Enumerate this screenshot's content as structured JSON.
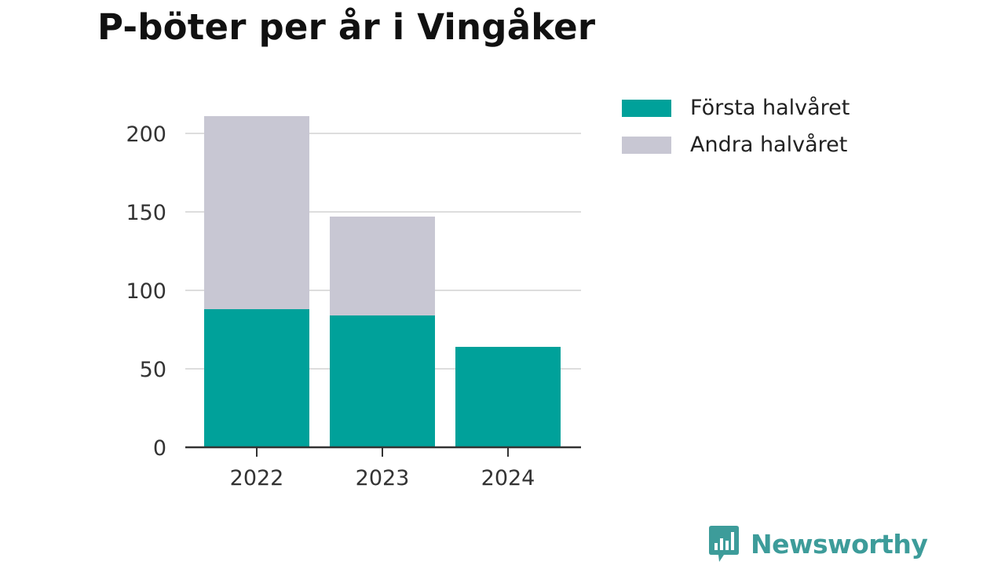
{
  "chart_data": {
    "type": "bar",
    "stacked": true,
    "title": "P-böter per år i Vingåker",
    "categories": [
      "2022",
      "2023",
      "2024"
    ],
    "series": [
      {
        "name": "Första halvåret",
        "values": [
          88,
          84,
          64
        ],
        "color": "#00a19a"
      },
      {
        "name": "Andra halvåret",
        "values": [
          123,
          63,
          0
        ],
        "color": "#c8c7d3"
      }
    ],
    "yticks": [
      0,
      50,
      100,
      150,
      200
    ],
    "ylim": [
      0,
      211
    ],
    "grid": true,
    "legend_position": "top-right"
  },
  "logo": {
    "text": "Newsworthy",
    "icon": "bar-chart-speech-bubble-icon",
    "color": "#3d9c9a"
  }
}
